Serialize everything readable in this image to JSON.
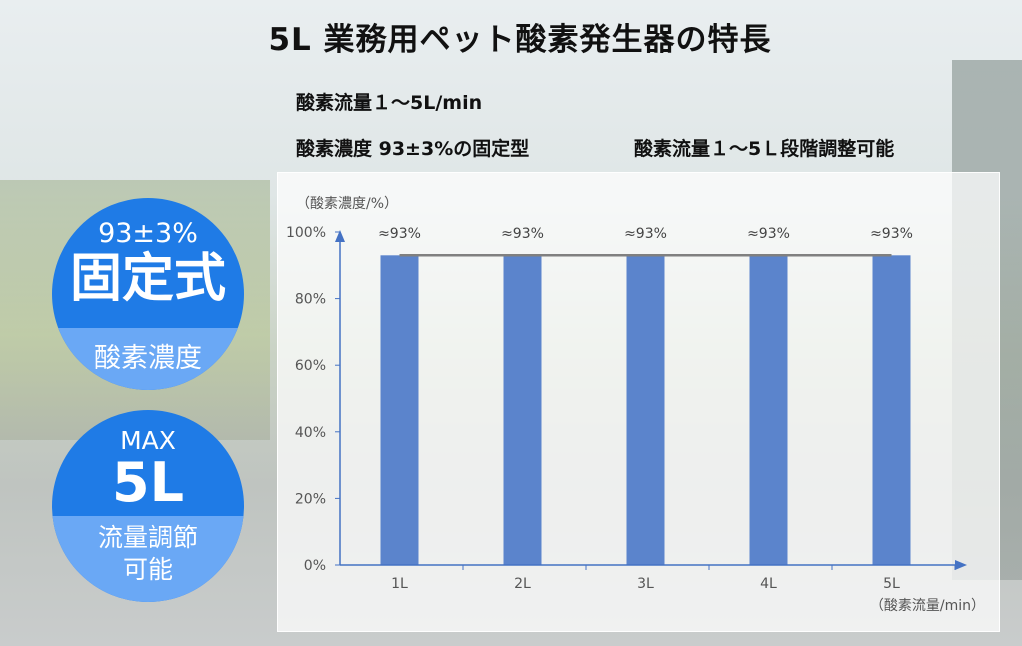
{
  "title": "5L 業務用ペット酸素発生器の特長",
  "features": [
    "酸素流量１～5L/min",
    "酸素濃度 93±3%の固定型",
    "酸素流量１～5Ｌ段階調整可能"
  ],
  "badges": [
    {
      "top": "93±3%",
      "main": "固定式",
      "bottom": "酸素濃度"
    },
    {
      "top": "MAX",
      "main": "5L",
      "bottom": "流量調節\n可能"
    }
  ],
  "colors": {
    "bar": "#5b84cc",
    "badge": "#1f7be6",
    "badge_light": "#6aa8f5",
    "axis": "#4472c4",
    "line": "#808080"
  },
  "chart_data": {
    "type": "bar",
    "categories": [
      "1L",
      "2L",
      "3L",
      "4L",
      "5L"
    ],
    "values": [
      93,
      93,
      93,
      93,
      93
    ],
    "data_labels": [
      "≈93%",
      "≈93%",
      "≈93%",
      "≈93%",
      "≈93%"
    ],
    "ylabel": "（酸素濃度/%）",
    "xlabel": "（酸素流量/min）",
    "ylim": [
      0,
      100
    ],
    "yticks": [
      0,
      20,
      40,
      60,
      80,
      100
    ],
    "ytick_labels": [
      "0%",
      "20%",
      "40%",
      "60%",
      "80%",
      "100%"
    ],
    "reference_line": 93,
    "grid": false
  }
}
